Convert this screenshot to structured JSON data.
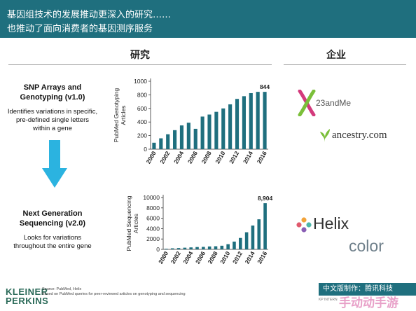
{
  "header": {
    "line1": "基因组技术的发展推动更深入的研究……",
    "line2": "也推动了面向消费者的基因测序服务"
  },
  "columns": {
    "research": "研究",
    "enterprise": "企业"
  },
  "steps": [
    {
      "title": "SNP Arrays and Genotyping (v1.0)",
      "desc": "Identifies variations in specific, pre-defined single letters within a gene"
    },
    {
      "title": "Next Generation Sequencing (v2.0)",
      "desc": "Looks for variations throughout the entire gene"
    }
  ],
  "arrow_icon": "arrow-down-icon",
  "arrow_color": "#2bb3e0",
  "bar_color": "#1f6f7e",
  "chart_data": [
    {
      "type": "bar",
      "title": "",
      "xlabel": "",
      "ylabel": "PubMed Genotyping Articles",
      "x": [
        "2000",
        "2001",
        "2002",
        "2003",
        "2004",
        "2005",
        "2006",
        "2007",
        "2008",
        "2009",
        "2010",
        "2011",
        "2012",
        "2013",
        "2014",
        "2015",
        "2016"
      ],
      "x_tick_labels": [
        "2000",
        "2002",
        "2004",
        "2006",
        "2008",
        "2010",
        "2012",
        "2014",
        "2016"
      ],
      "values": [
        95,
        160,
        220,
        280,
        350,
        390,
        300,
        480,
        510,
        550,
        600,
        660,
        740,
        780,
        825,
        844,
        844
      ],
      "ylim": [
        0,
        1000
      ],
      "yticks": [
        "0",
        "200",
        "400",
        "600",
        "800",
        "1000"
      ],
      "annotation": "844",
      "grid": false
    },
    {
      "type": "bar",
      "title": "",
      "xlabel": "",
      "ylabel": "PubMed Sequencing Articles",
      "x": [
        "2000",
        "2001",
        "2002",
        "2003",
        "2004",
        "2005",
        "2006",
        "2007",
        "2008",
        "2009",
        "2010",
        "2011",
        "2012",
        "2013",
        "2014",
        "2015",
        "2016"
      ],
      "x_tick_labels": [
        "2000",
        "2002",
        "2004",
        "2006",
        "2008",
        "2010",
        "2012",
        "2014",
        "2016"
      ],
      "values": [
        120,
        200,
        250,
        320,
        380,
        450,
        480,
        560,
        600,
        700,
        1000,
        1500,
        2200,
        3300,
        4600,
        5800,
        8904
      ],
      "ylim": [
        0,
        10000
      ],
      "yticks": [
        "0",
        "2000",
        "4000",
        "6000",
        "8000",
        "10000"
      ],
      "annotation": "8,904",
      "grid": false
    }
  ],
  "companies": [
    {
      "name": "23andMe",
      "icon": "23andme-x-icon",
      "color": "#d33a7c"
    },
    {
      "name": "ancestry.com",
      "icon": "ancestry-leaf-icon",
      "color": "#5a9a34"
    },
    {
      "name": "Helix",
      "icon": "helix-dots-icon",
      "color": "#333333"
    },
    {
      "name": "color",
      "icon": "",
      "color": "#6e7f8a"
    }
  ],
  "footer": {
    "brand_line1": "KLEINER",
    "brand_line2": "PERKINS",
    "source_line1": "Source: PubMed, Helix",
    "source_line2": "Based on PubMed queries for peer-reviewed articles on genotyping and sequencing",
    "credit": "中文版制作：腾讯科技",
    "small": "KP INTERN",
    "watermark": "手动动手游"
  }
}
